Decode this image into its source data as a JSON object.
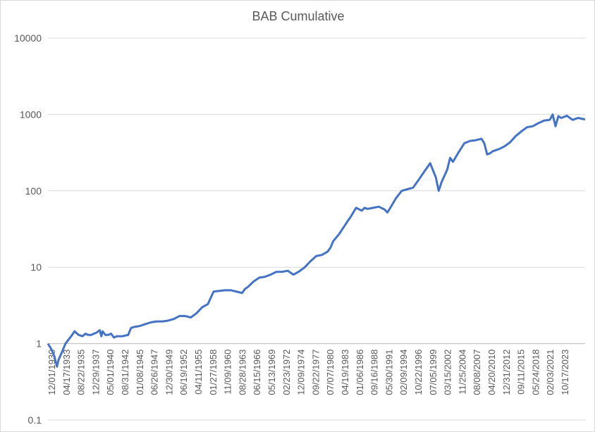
{
  "chart_data": {
    "type": "line",
    "title": "BAB Cumulative",
    "xlabel": "",
    "ylabel": "",
    "y_scale": "log",
    "ylim": [
      0.1,
      10000
    ],
    "y_ticks": [
      "0.1",
      "1",
      "10",
      "100",
      "1000",
      "10000"
    ],
    "x_tick_labels": [
      "12/01/1930",
      "04/17/1933",
      "08/22/1935",
      "12/29/1937",
      "05/01/1940",
      "08/31/1942",
      "01/08/1945",
      "06/26/1947",
      "12/30/1949",
      "06/19/1952",
      "04/11/1955",
      "01/27/1958",
      "11/09/1960",
      "08/28/1963",
      "06/15/1966",
      "05/13/1969",
      "02/23/1972",
      "12/09/1974",
      "09/22/1977",
      "07/07/1980",
      "04/19/1983",
      "01/06/1986",
      "09/16/1988",
      "05/30/1991",
      "02/09/1994",
      "10/22/1996",
      "07/05/1999",
      "03/15/2002",
      "11/25/2004",
      "08/08/2007",
      "04/20/2010",
      "12/31/2012",
      "09/11/2015",
      "05/24/2018",
      "02/03/2021",
      "10/17/2023"
    ],
    "grid": true,
    "legend": "none",
    "line_color": "#4472c4",
    "series": [
      {
        "x": [
          1930.92,
          1931.5,
          1932.0,
          1932.5,
          1932.8,
          1933.3,
          1934.0,
          1935.0,
          1935.6,
          1936.3,
          1937.0,
          1937.5,
          1938.0,
          1938.5,
          1939.0,
          1939.5,
          1940.0,
          1940.3,
          1940.5,
          1941.0,
          1941.5,
          1942.0,
          1942.5,
          1943.0,
          1944.0,
          1945.0,
          1945.5,
          1946.0,
          1947.0,
          1948.0,
          1949.0,
          1950.0,
          1951.0,
          1952.0,
          1953.0,
          1954.0,
          1955.0,
          1956.0,
          1957.0,
          1958.0,
          1959.0,
          1959.5,
          1960.0,
          1961.0,
          1962.0,
          1963.0,
          1964.0,
          1965.0,
          1965.5,
          1966.0,
          1967.0,
          1968.0,
          1969.0,
          1970.0,
          1971.0,
          1972.0,
          1973.0,
          1974.0,
          1975.0,
          1976.0,
          1977.0,
          1978.0,
          1979.0,
          1980.0,
          1980.5,
          1981.0,
          1982.0,
          1983.0,
          1983.5,
          1984.0,
          1985.0,
          1986.0,
          1986.5,
          1987.0,
          1988.0,
          1989.0,
          1990.0,
          1990.5,
          1991.0,
          1992.0,
          1993.0,
          1994.0,
          1995.0,
          1996.0,
          1997.0,
          1998.0,
          1999.0,
          1999.5,
          2000.0,
          2001.0,
          2001.5,
          2002.0,
          2003.0,
          2004.0,
          2005.0,
          2006.0,
          2007.0,
          2007.5,
          2008.0,
          2008.5,
          2009.0,
          2010.0,
          2011.0,
          2012.0,
          2013.0,
          2014.0,
          2015.0,
          2016.0,
          2017.0,
          2018.0,
          2019.0,
          2019.5,
          2020.0,
          2020.5,
          2021.0,
          2022.0,
          2023.0,
          2024.0,
          2025.2
        ],
        "values": [
          1.0,
          0.85,
          0.7,
          0.5,
          0.62,
          0.75,
          1.0,
          1.25,
          1.45,
          1.3,
          1.25,
          1.35,
          1.3,
          1.3,
          1.35,
          1.4,
          1.5,
          1.25,
          1.45,
          1.3,
          1.3,
          1.35,
          1.2,
          1.25,
          1.25,
          1.3,
          1.6,
          1.65,
          1.7,
          1.8,
          1.9,
          1.95,
          1.95,
          2.0,
          2.1,
          2.3,
          2.3,
          2.2,
          2.5,
          3.0,
          3.3,
          4.0,
          4.8,
          4.9,
          5.0,
          5.0,
          4.8,
          4.6,
          5.2,
          5.5,
          6.5,
          7.3,
          7.5,
          8.0,
          8.7,
          8.7,
          9.0,
          8.0,
          8.8,
          10.0,
          12.0,
          14.0,
          14.5,
          16.0,
          18.0,
          22.0,
          27.0,
          35.0,
          40.0,
          45.0,
          60.0,
          55.0,
          60.0,
          58.0,
          60.0,
          62.0,
          57.0,
          52.0,
          60.0,
          80.0,
          100.0,
          105.0,
          110.0,
          140.0,
          180.0,
          230.0,
          150.0,
          100.0,
          130.0,
          190.0,
          270.0,
          240.0,
          320.0,
          420.0,
          450.0,
          460.0,
          480.0,
          420.0,
          300.0,
          310.0,
          330.0,
          350.0,
          380.0,
          430.0,
          520.0,
          600.0,
          680.0,
          700.0,
          770.0,
          830.0,
          850.0,
          1000.0,
          700.0,
          950.0,
          900.0,
          960.0,
          850.0,
          900.0,
          860.0
        ]
      }
    ]
  }
}
